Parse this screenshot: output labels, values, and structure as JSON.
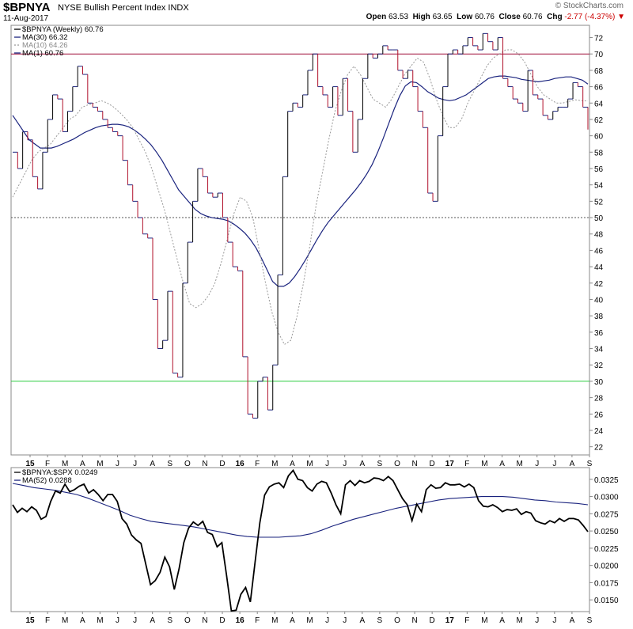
{
  "header": {
    "symbol": "$BPNYA",
    "name": "NYSE Bullish Percent Index",
    "exchange": "INDX",
    "date": "11-Aug-2017",
    "brand": "© StockCharts.com",
    "open_label": "Open",
    "open": "63.53",
    "high_label": "High",
    "high": "63.65",
    "low_label": "Low",
    "low": "60.76",
    "close_label": "Close",
    "close": "60.76",
    "chg_label": "Chg",
    "chg": "-2.77 (-4.37%)",
    "chg_arrow": "▼"
  },
  "colors": {
    "up_bar": "#000000",
    "down_bar": "#b0102a",
    "ma_long": "#1a237e",
    "ma_short": "#999999",
    "line_70": "#a0103c",
    "line_50": "#555555",
    "line_30": "#2ecc40",
    "ratio": "#000000"
  },
  "chart_data": [
    {
      "type": "line",
      "title": "$BPNYA (Weekly)",
      "legend": [
        {
          "label": "$BPNYA (Weekly) 60.76"
        },
        {
          "label": "MA(30) 66.32"
        },
        {
          "label": "MA(10) 64.26"
        },
        {
          "label": "MA(1) 60.76"
        }
      ],
      "legend_position": "top-left",
      "ylim": [
        21,
        73.5
      ],
      "yticks": [
        22,
        24,
        26,
        28,
        30,
        32,
        34,
        36,
        38,
        40,
        42,
        44,
        46,
        48,
        50,
        52,
        54,
        56,
        58,
        60,
        62,
        64,
        66,
        68,
        70,
        72
      ],
      "xtick_labels": [
        "15",
        "F",
        "M",
        "A",
        "M",
        "J",
        "J",
        "A",
        "S",
        "O",
        "N",
        "D",
        "16",
        "F",
        "M",
        "A",
        "M",
        "J",
        "J",
        "A",
        "S",
        "O",
        "N",
        "D",
        "17",
        "F",
        "M",
        "A",
        "M",
        "J",
        "J",
        "A",
        "S"
      ],
      "reference_lines": [
        70,
        50,
        30
      ],
      "weeks": 137,
      "series": [
        {
          "name": "$BPNYA",
          "values": [
            58,
            56,
            60.5,
            59.5,
            55,
            53.5,
            58,
            62,
            65,
            64.5,
            60.5,
            63,
            66,
            68.5,
            67.5,
            64,
            63.5,
            63,
            62,
            61,
            60.5,
            60,
            57,
            54,
            52,
            50,
            48,
            47.5,
            40,
            34,
            35,
            41,
            31,
            30.5,
            42,
            47,
            52,
            56,
            55,
            53,
            52.5,
            53,
            50,
            47,
            44,
            43.5,
            33,
            26,
            25.5,
            30,
            30.5,
            26.5,
            32,
            43,
            55,
            63,
            64,
            63.5,
            65,
            68,
            70,
            66,
            65,
            63.5,
            66,
            62.5,
            67,
            63,
            58,
            62,
            67,
            70,
            69.5,
            70,
            71,
            70.5,
            70.5,
            68,
            67,
            68,
            66,
            63,
            61,
            53,
            52,
            60,
            66,
            70,
            70.5,
            70,
            71,
            72,
            71,
            70.5,
            72.5,
            71.5,
            70.5,
            72,
            67,
            66,
            64.5,
            64,
            63,
            68,
            65,
            64.5,
            62.5,
            62,
            63,
            63.5,
            63.5,
            64.5,
            66.5,
            66,
            63.5,
            60.76
          ]
        },
        {
          "name": "MA(30)",
          "values": [
            62.5,
            61.5,
            60.5,
            59.5,
            59,
            58.5,
            58.5,
            58.5,
            58.7,
            59,
            59.3,
            59.6,
            60,
            60.4,
            60.7,
            61,
            61.2,
            61.3,
            61.4,
            61.4,
            61.3,
            61.1,
            60.7,
            60.2,
            59.6,
            58.9,
            58,
            57,
            55.8,
            54.6,
            53.4,
            52.6,
            51.8,
            51,
            50.5,
            50.2,
            50,
            49.9,
            49.8,
            49.6,
            49.2,
            48.7,
            48.1,
            47.3,
            46.3,
            45,
            43.6,
            42.2,
            41.6,
            41.6,
            42,
            42.8,
            43.8,
            44.9,
            46.1,
            47.3,
            48.4,
            49.4,
            50.2,
            51,
            51.8,
            52.6,
            53.4,
            54.3,
            55.3,
            56.5,
            58,
            59.7,
            61.5,
            63.3,
            64.9,
            66.1,
            66.6,
            66.5,
            66,
            65.4,
            65,
            64.6,
            64.4,
            64.3,
            64.4,
            64.7,
            65,
            65.5,
            66,
            66.5,
            67,
            67.2,
            67.3,
            67.3,
            67.2,
            67.1,
            66.9,
            66.8,
            66.7,
            66.6,
            66.7,
            66.8,
            67,
            67.1,
            67.2,
            67.2,
            67,
            66.8,
            66.32
          ]
        },
        {
          "name": "MA(10)",
          "values": [
            52.5,
            54,
            55.5,
            57,
            58,
            58.5,
            59,
            60,
            61,
            62,
            62.5,
            63.5,
            63.8,
            64,
            64.3,
            64,
            63.5,
            62.8,
            62,
            61,
            59.5,
            58,
            56,
            53.5,
            51,
            48,
            45,
            42,
            39.5,
            39,
            39.5,
            40.5,
            42,
            44.5,
            47.5,
            50.5,
            52.5,
            52,
            50,
            46,
            42,
            38.5,
            36,
            34.5,
            35,
            38,
            42,
            46.5,
            51.5,
            55.5,
            59.5,
            63,
            65.5,
            67.5,
            68.5,
            67.5,
            66,
            64.5,
            64,
            63.5,
            64.5,
            66,
            67.5,
            68.5,
            69.5,
            69,
            67,
            64.5,
            62.5,
            61,
            61,
            62,
            64,
            65.5,
            67,
            68.5,
            69.5,
            70,
            70.5,
            70.5,
            70,
            69,
            67.5,
            66,
            65,
            64.5,
            64,
            64,
            64.2,
            64.4,
            64.3,
            64.26
          ]
        }
      ]
    },
    {
      "type": "line",
      "title": "$BPNYA:$SPX",
      "legend": [
        {
          "label": "$BPNYA:$SPX 0.0249"
        },
        {
          "label": "MA(52) 0.0288"
        }
      ],
      "legend_position": "top-left",
      "ylim": [
        0.0133,
        0.0342
      ],
      "yticks": [
        0.015,
        0.0175,
        0.02,
        0.0225,
        0.025,
        0.0275,
        0.03,
        0.0325
      ],
      "ytick_labels": [
        "0.0150",
        "0.0175",
        "0.0200",
        "0.0225",
        "0.0250",
        "0.0275",
        "0.0300",
        "0.0325"
      ],
      "xtick_labels": [
        "15",
        "F",
        "M",
        "A",
        "M",
        "J",
        "J",
        "A",
        "S",
        "O",
        "N",
        "D",
        "16",
        "F",
        "M",
        "A",
        "M",
        "J",
        "J",
        "A",
        "S",
        "O",
        "N",
        "D",
        "17",
        "F",
        "M",
        "A",
        "M",
        "J",
        "J",
        "A",
        "S"
      ],
      "series": [
        {
          "name": "$BPNYA:$SPX",
          "values": [
            0.0288,
            0.0277,
            0.0283,
            0.0278,
            0.0285,
            0.028,
            0.0267,
            0.0271,
            0.0293,
            0.0308,
            0.0305,
            0.0318,
            0.0307,
            0.031,
            0.0315,
            0.0318,
            0.0305,
            0.031,
            0.0303,
            0.0294,
            0.0303,
            0.0303,
            0.0293,
            0.0268,
            0.026,
            0.0244,
            0.0237,
            0.0232,
            0.0202,
            0.0172,
            0.0178,
            0.019,
            0.0212,
            0.0198,
            0.0165,
            0.0195,
            0.0233,
            0.0254,
            0.0263,
            0.0258,
            0.0264,
            0.0248,
            0.0245,
            0.0227,
            0.0233,
            0.0185,
            0.0134,
            0.0135,
            0.0158,
            0.0168,
            0.0147,
            0.0205,
            0.0262,
            0.0302,
            0.0314,
            0.0318,
            0.032,
            0.0313,
            0.033,
            0.0338,
            0.0325,
            0.0323,
            0.0313,
            0.0308,
            0.0318,
            0.0322,
            0.032,
            0.0305,
            0.0288,
            0.0275,
            0.0317,
            0.0323,
            0.0316,
            0.0323,
            0.032,
            0.0322,
            0.0327,
            0.0326,
            0.0323,
            0.0329,
            0.0323,
            0.031,
            0.0297,
            0.0288,
            0.0265,
            0.0289,
            0.0278,
            0.031,
            0.0317,
            0.0312,
            0.0313,
            0.032,
            0.0317,
            0.0317,
            0.0318,
            0.0314,
            0.0318,
            0.0313,
            0.0294,
            0.0286,
            0.0285,
            0.0288,
            0.0284,
            0.0278,
            0.0281,
            0.028,
            0.0282,
            0.0274,
            0.0278,
            0.0276,
            0.0265,
            0.0262,
            0.026,
            0.0265,
            0.0262,
            0.0268,
            0.0264,
            0.0268,
            0.0268,
            0.0266,
            0.0258,
            0.0249
          ]
        },
        {
          "name": "MA(52)",
          "values": [
            0.0319,
            0.0316,
            0.0313,
            0.0311,
            0.0309,
            0.0306,
            0.0303,
            0.0298,
            0.0292,
            0.0286,
            0.028,
            0.0273,
            0.0268,
            0.0264,
            0.0262,
            0.026,
            0.0258,
            0.0256,
            0.0253,
            0.025,
            0.0247,
            0.0244,
            0.0242,
            0.0241,
            0.0241,
            0.0241,
            0.0242,
            0.0243,
            0.0246,
            0.0251,
            0.0257,
            0.0262,
            0.0267,
            0.0271,
            0.0275,
            0.0279,
            0.0283,
            0.0286,
            0.0289,
            0.0292,
            0.0295,
            0.0297,
            0.0298,
            0.0299,
            0.03,
            0.03,
            0.03,
            0.0299,
            0.0297,
            0.0295,
            0.0294,
            0.0292,
            0.0291,
            0.029,
            0.0288
          ]
        }
      ]
    }
  ]
}
